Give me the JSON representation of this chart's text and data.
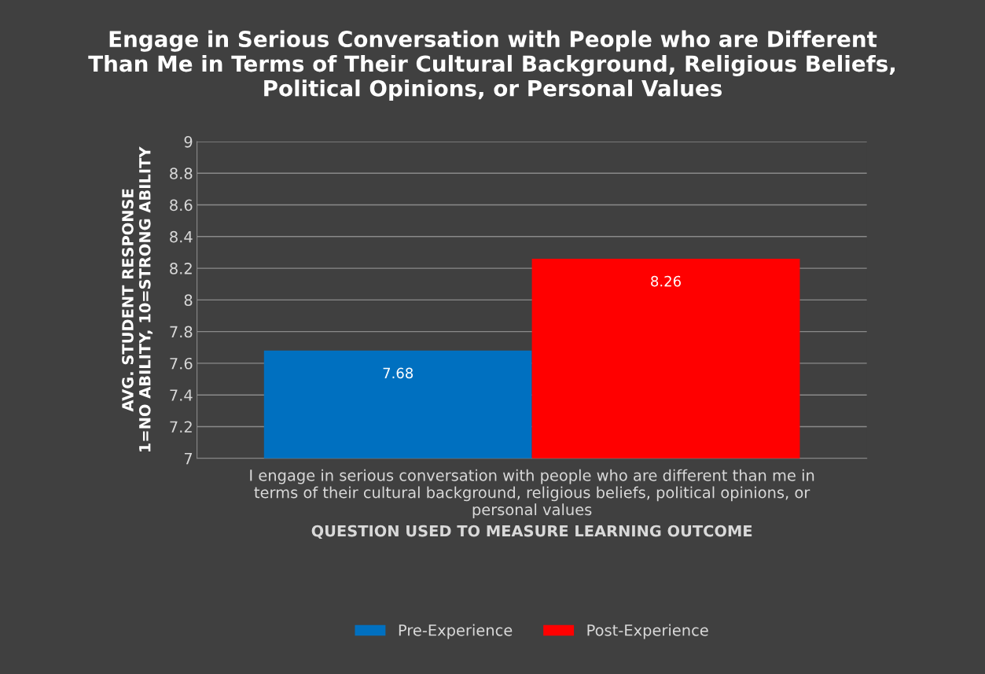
{
  "chart_data": {
    "type": "bar",
    "title": "Engage in Serious Conversation with People who are Different Than Me in Terms of Their Cultural Background, Religious Beliefs, Political Opinions, or Personal Values",
    "xlabel": "QUESTION USED TO MEASURE LEARNING OUTCOME",
    "ylabel": "AVG. STUDENT RESPONSE\n1=NO ABILITY, 10=STRONG ABILITY",
    "categories": [
      "I engage in serious conversation with people who are different than me in terms of their cultural background, religious beliefs, political opinions, or personal values"
    ],
    "series": [
      {
        "name": "Pre-Experience",
        "color": "#0070c0",
        "values": [
          7.68
        ]
      },
      {
        "name": "Post-Experience",
        "color": "#ff0000",
        "values": [
          8.26
        ]
      }
    ],
    "ylim": [
      7,
      9
    ],
    "yticks": [
      7,
      7.2,
      7.4,
      7.6,
      7.8,
      8,
      8.2,
      8.4,
      8.6,
      8.8,
      9
    ],
    "grid": "y",
    "data_labels": true,
    "legend": "bottom"
  }
}
